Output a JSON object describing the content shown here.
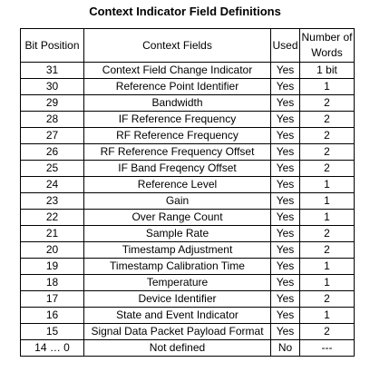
{
  "title": "Context Indicator Field Definitions",
  "headers": {
    "bit_position": "Bit Position",
    "context_fields": "Context Fields",
    "used": "Used",
    "num_words_line1": "Number of",
    "num_words_line2": "Words"
  },
  "rows": [
    {
      "bit": "31",
      "field": "Context Field Change Indicator",
      "used": "Yes",
      "words": "1 bit"
    },
    {
      "bit": "30",
      "field": "Reference Point Identifier",
      "used": "Yes",
      "words": "1"
    },
    {
      "bit": "29",
      "field": "Bandwidth",
      "used": "Yes",
      "words": "2"
    },
    {
      "bit": "28",
      "field": "IF Reference Frequency",
      "used": "Yes",
      "words": "2"
    },
    {
      "bit": "27",
      "field": "RF Reference Frequency",
      "used": "Yes",
      "words": "2"
    },
    {
      "bit": "26",
      "field": "RF Reference Frequency Offset",
      "used": "Yes",
      "words": "2"
    },
    {
      "bit": "25",
      "field": "IF Band Freqency Offset",
      "used": "Yes",
      "words": "2"
    },
    {
      "bit": "24",
      "field": "Reference Level",
      "used": "Yes",
      "words": "1"
    },
    {
      "bit": "23",
      "field": "Gain",
      "used": "Yes",
      "words": "1"
    },
    {
      "bit": "22",
      "field": "Over Range Count",
      "used": "Yes",
      "words": "1"
    },
    {
      "bit": "21",
      "field": "Sample Rate",
      "used": "Yes",
      "words": "2"
    },
    {
      "bit": "20",
      "field": "Timestamp Adjustment",
      "used": "Yes",
      "words": "2"
    },
    {
      "bit": "19",
      "field": "Timestamp Calibration Time",
      "used": "Yes",
      "words": "1"
    },
    {
      "bit": "18",
      "field": "Temperature",
      "used": "Yes",
      "words": "1"
    },
    {
      "bit": "17",
      "field": "Device Identifier",
      "used": "Yes",
      "words": "2"
    },
    {
      "bit": "16",
      "field": "State and Event Indicator",
      "used": "Yes",
      "words": "1"
    },
    {
      "bit": "15",
      "field": "Signal Data Packet Payload Format",
      "used": "Yes",
      "words": "2"
    },
    {
      "bit": "14 … 0",
      "field": "Not defined",
      "used": "No",
      "words": "---"
    }
  ]
}
